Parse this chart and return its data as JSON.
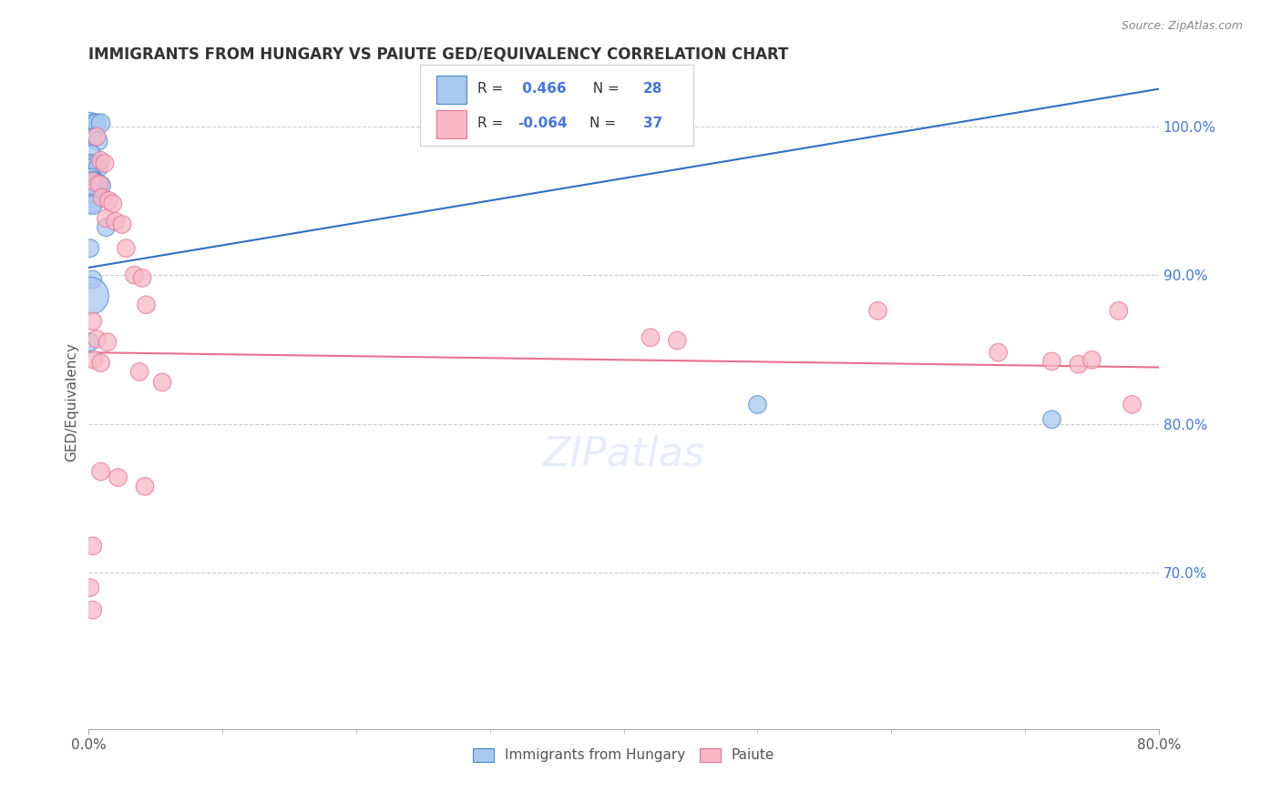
{
  "title": "IMMIGRANTS FROM HUNGARY VS PAIUTE GED/EQUIVALENCY CORRELATION CHART",
  "source": "Source: ZipAtlas.com",
  "ylabel": "GED/Equivalency",
  "ylabel_right_labels": [
    "100.0%",
    "90.0%",
    "80.0%",
    "70.0%"
  ],
  "ylabel_right_values": [
    1.0,
    0.9,
    0.8,
    0.7
  ],
  "legend_bottom1": "Immigrants from Hungary",
  "legend_bottom2": "Paiute",
  "blue_color": "#a8c8f0",
  "pink_color": "#f8b8c8",
  "blue_edge_color": "#4488cc",
  "pink_edge_color": "#e87090",
  "blue_line_color": "#3070c0",
  "pink_line_color": "#e87090",
  "xmin": 0.0,
  "xmax": 0.8,
  "ymin": 0.595,
  "ymax": 1.035,
  "blue_line": [
    0.0,
    0.905,
    0.8,
    1.025
  ],
  "pink_line": [
    0.0,
    0.848,
    0.8,
    0.838
  ],
  "blue_points": [
    [
      0.001,
      1.003
    ],
    [
      0.004,
      1.002
    ],
    [
      0.006,
      1.002
    ],
    [
      0.009,
      1.002
    ],
    [
      0.003,
      0.992
    ],
    [
      0.007,
      0.99
    ],
    [
      0.002,
      0.981
    ],
    [
      0.001,
      0.975
    ],
    [
      0.003,
      0.974
    ],
    [
      0.005,
      0.973
    ],
    [
      0.007,
      0.972
    ],
    [
      0.002,
      0.965
    ],
    [
      0.004,
      0.963
    ],
    [
      0.005,
      0.962
    ],
    [
      0.007,
      0.961
    ],
    [
      0.009,
      0.96
    ],
    [
      0.001,
      0.956
    ],
    [
      0.003,
      0.955
    ],
    [
      0.005,
      0.954
    ],
    [
      0.002,
      0.948
    ],
    [
      0.003,
      0.947
    ],
    [
      0.013,
      0.932
    ],
    [
      0.001,
      0.918
    ],
    [
      0.003,
      0.897
    ],
    [
      0.001,
      0.886
    ],
    [
      0.5,
      0.813
    ],
    [
      0.72,
      0.803
    ],
    [
      0.001,
      0.855
    ]
  ],
  "blue_sizes": [
    10,
    10,
    10,
    10,
    10,
    10,
    10,
    10,
    10,
    10,
    10,
    11,
    11,
    11,
    11,
    11,
    10,
    10,
    10,
    10,
    10,
    9,
    9,
    9,
    40,
    9,
    9,
    9
  ],
  "pink_points": [
    [
      0.006,
      0.993
    ],
    [
      0.009,
      0.977
    ],
    [
      0.012,
      0.975
    ],
    [
      0.003,
      0.963
    ],
    [
      0.008,
      0.961
    ],
    [
      0.01,
      0.952
    ],
    [
      0.015,
      0.95
    ],
    [
      0.018,
      0.948
    ],
    [
      0.013,
      0.938
    ],
    [
      0.02,
      0.936
    ],
    [
      0.025,
      0.934
    ],
    [
      0.028,
      0.918
    ],
    [
      0.034,
      0.9
    ],
    [
      0.04,
      0.898
    ],
    [
      0.043,
      0.88
    ],
    [
      0.003,
      0.869
    ],
    [
      0.006,
      0.857
    ],
    [
      0.014,
      0.855
    ],
    [
      0.004,
      0.843
    ],
    [
      0.009,
      0.841
    ],
    [
      0.038,
      0.835
    ],
    [
      0.055,
      0.828
    ],
    [
      0.42,
      0.858
    ],
    [
      0.44,
      0.856
    ],
    [
      0.59,
      0.876
    ],
    [
      0.68,
      0.848
    ],
    [
      0.72,
      0.842
    ],
    [
      0.74,
      0.84
    ],
    [
      0.75,
      0.843
    ],
    [
      0.77,
      0.876
    ],
    [
      0.78,
      0.813
    ],
    [
      0.009,
      0.768
    ],
    [
      0.022,
      0.764
    ],
    [
      0.042,
      0.758
    ],
    [
      0.003,
      0.718
    ],
    [
      0.001,
      0.69
    ],
    [
      0.003,
      0.675
    ]
  ],
  "pink_sizes": [
    9,
    9,
    9,
    9,
    9,
    9,
    9,
    9,
    9,
    9,
    9,
    9,
    9,
    9,
    9,
    9,
    9,
    9,
    9,
    9,
    9,
    9,
    9,
    9,
    9,
    9,
    9,
    9,
    9,
    9,
    9,
    9,
    9,
    9,
    9,
    9,
    9
  ]
}
